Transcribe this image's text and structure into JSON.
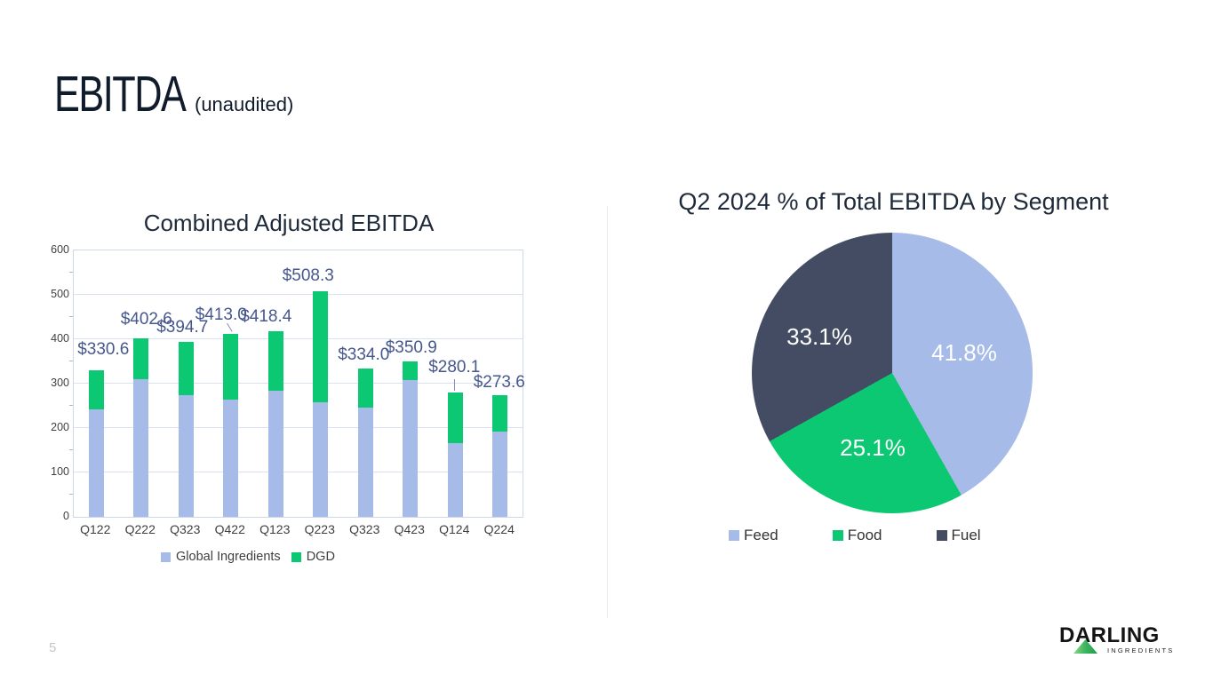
{
  "slide": {
    "title": "EBITDA",
    "title_suffix": "(unaudited)",
    "page_number": "5",
    "logo": {
      "brand": "DARLING",
      "sub_brand": "INGREDIENTS"
    }
  },
  "chart_data": [
    {
      "type": "bar",
      "stacked": true,
      "title": "Combined Adjusted EBITDA",
      "categories": [
        "Q122",
        "Q222",
        "Q323",
        "Q422",
        "Q123",
        "Q223",
        "Q323",
        "Q423",
        "Q124",
        "Q224"
      ],
      "series": [
        {
          "name": "Global Ingredients",
          "color": "#A6BBE8",
          "values": [
            242.0,
            310.0,
            274.0,
            264.0,
            284.0,
            259.0,
            246.0,
            308.6,
            165.3,
            193.0
          ]
        },
        {
          "name": "DGD",
          "color": "#0DC873",
          "values": [
            88.6,
            92.6,
            120.7,
            149.0,
            134.4,
            249.3,
            88.0,
            42.3,
            114.8,
            80.6
          ]
        }
      ],
      "totals": [
        330.6,
        402.6,
        394.7,
        413.0,
        418.4,
        508.3,
        334.0,
        350.9,
        280.1,
        273.6
      ],
      "total_labels": [
        "$330.6",
        "$402.6",
        "$394.7",
        "$413.0",
        "$418.4",
        "$508.3",
        "$334.0",
        "$350.9",
        "$280.1",
        "$273.6"
      ],
      "xlabel": "",
      "ylabel": "",
      "ylim": [
        0,
        600
      ],
      "yticks": [
        0,
        100,
        200,
        300,
        400,
        500,
        600
      ],
      "grid": true,
      "legend_position": "bottom"
    },
    {
      "type": "pie",
      "title": "Q2 2024 % of Total EBITDA by Segment",
      "labels": [
        "Feed",
        "Food",
        "Fuel"
      ],
      "values": [
        41.8,
        25.1,
        33.1
      ],
      "slice_labels": [
        "41.8%",
        "25.1%",
        "33.1%"
      ],
      "colors": [
        "#A6BBE8",
        "#0DC873",
        "#434C63"
      ],
      "start_angle_deg": 0,
      "direction": "clockwise",
      "legend_position": "bottom"
    }
  ],
  "colors": {
    "slide_title_text": "#101B2C",
    "chart_title_text": "#1E2A3A",
    "bar_label_text": "#46578D",
    "axis_text": "#3F3F3F",
    "gridline": "#DAE2F1",
    "divider": "#E9E9E9",
    "page_number_text": "#C6C6C6",
    "pie_slice_label_text": "#FFFFFF",
    "logo_green_light": "#8BD48A",
    "logo_green_dark": "#1F9D4B"
  }
}
